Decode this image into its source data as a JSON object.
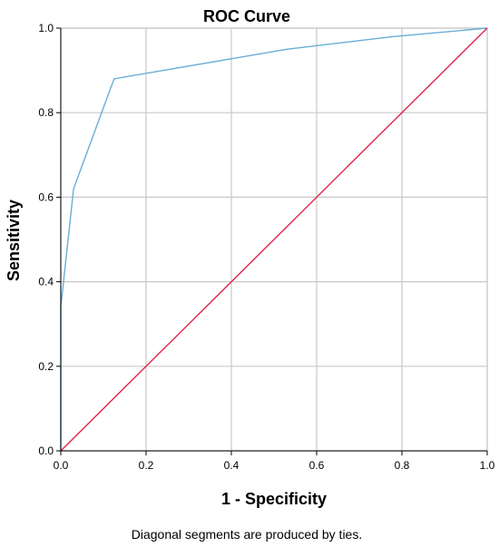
{
  "chart_data": {
    "type": "line",
    "title": "ROC Curve",
    "xlabel": "1 - Specificity",
    "ylabel": "Sensitivity",
    "xlim": [
      0.0,
      1.0
    ],
    "ylim": [
      0.0,
      1.0
    ],
    "x_ticks": [
      "0.0",
      "0.2",
      "0.4",
      "0.6",
      "0.8",
      "1.0"
    ],
    "y_ticks": [
      "0.0",
      "0.2",
      "0.4",
      "0.6",
      "0.8",
      "1.0"
    ],
    "grid": true,
    "legend": "none",
    "series": [
      {
        "color": "#6aaed6",
        "points": [
          [
            0.0,
            0.0
          ],
          [
            0.0,
            0.34
          ],
          [
            0.03,
            0.62
          ],
          [
            0.125,
            0.88
          ],
          [
            0.53,
            0.95
          ],
          [
            0.78,
            0.98
          ],
          [
            1.0,
            1.0
          ]
        ]
      },
      {
        "color": "#e0254d",
        "points": [
          [
            0.0,
            0.0
          ],
          [
            1.0,
            1.0
          ]
        ]
      }
    ],
    "footnote": "Diagonal segments are produced by ties."
  },
  "colors": {
    "grid": "#c8c8c8",
    "frame": "#c8c8c8",
    "axis": "#000000"
  }
}
